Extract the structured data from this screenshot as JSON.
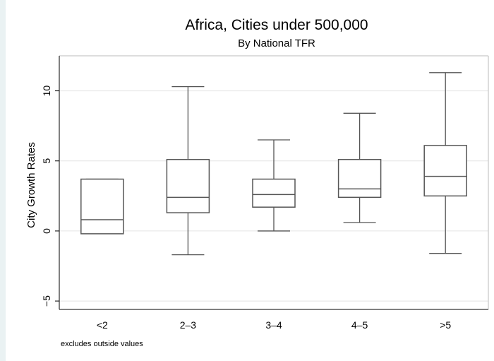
{
  "chart_data": {
    "type": "boxplot",
    "title": "Africa, Cities under 500,000",
    "subtitle": "By National TFR",
    "xlabel": "",
    "ylabel": "City Growth Rates",
    "note": "excludes outside values",
    "categories": [
      "<2",
      "2–3",
      "3–4",
      "4–5",
      ">5"
    ],
    "boxes": [
      {
        "category": "<2",
        "whisker_low": -0.2,
        "q1": -0.2,
        "median": 0.8,
        "q3": 3.7,
        "whisker_high": 3.7
      },
      {
        "category": "2–3",
        "whisker_low": -1.7,
        "q1": 1.3,
        "median": 2.4,
        "q3": 5.1,
        "whisker_high": 10.3
      },
      {
        "category": "3–4",
        "whisker_low": 0.0,
        "q1": 1.7,
        "median": 2.6,
        "q3": 3.7,
        "whisker_high": 6.5
      },
      {
        "category": "4–5",
        "whisker_low": 0.6,
        "q1": 2.4,
        "median": 3.0,
        "q3": 5.1,
        "whisker_high": 8.4
      },
      {
        "category": ">5",
        "whisker_low": -1.6,
        "q1": 2.5,
        "median": 3.9,
        "q3": 6.1,
        "whisker_high": 11.3
      }
    ],
    "yticks": [
      -5,
      0,
      5,
      10
    ],
    "ylim": [
      -5.6,
      12.5
    ],
    "grid": true,
    "legend": "none",
    "colors": {
      "box": "#555555",
      "grid": "#e4e4e4",
      "axis": "#000000"
    }
  }
}
